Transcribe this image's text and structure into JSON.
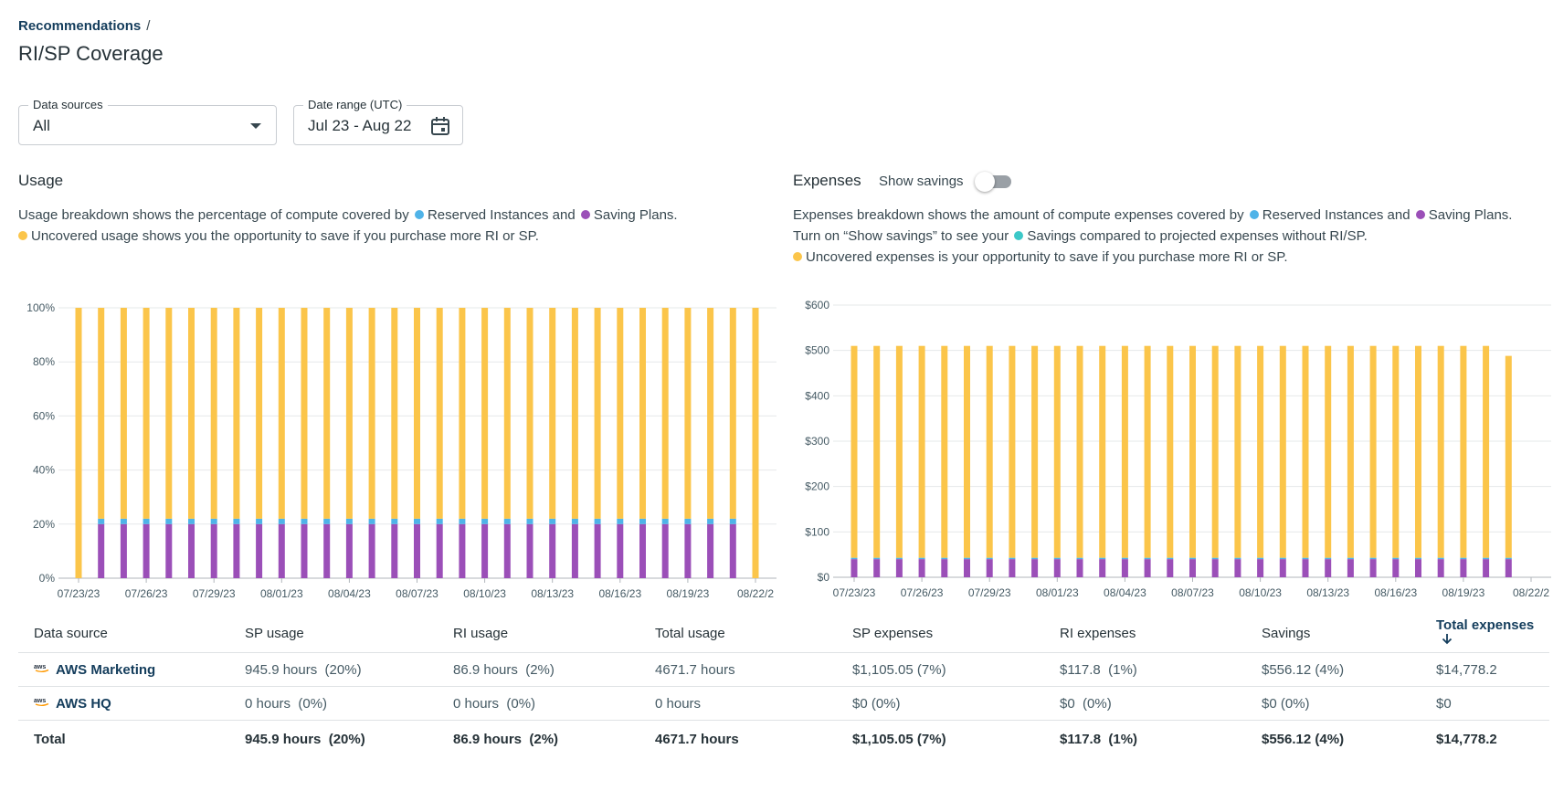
{
  "breadcrumb": {
    "parent": "Recommendations",
    "separator": "/"
  },
  "page_title": "RI/SP Coverage",
  "filters": {
    "data_sources": {
      "label": "Data sources",
      "value": "All"
    },
    "date_range": {
      "label": "Date range (UTC)",
      "value": "Jul 23 - Aug 22"
    }
  },
  "usage": {
    "title": "Usage",
    "desc_line1_pre": "Usage breakdown shows the percentage of compute covered by",
    "desc_ri": "Reserved Instances and",
    "desc_sp": "Saving Plans.",
    "desc_line2": "Uncovered usage shows you the opportunity to save if you purchase more RI or SP."
  },
  "expenses": {
    "title": "Expenses",
    "toggle_label": "Show savings",
    "desc_line1_pre": "Expenses breakdown shows the amount of compute expenses covered by",
    "desc_ri": "Reserved Instances and",
    "desc_sp": "Saving Plans.",
    "desc_line2_pre": "Turn on “Show savings” to see your",
    "desc_line2_post": "Savings compared to projected expenses without RI/SP.",
    "desc_line3": "Uncovered expenses is your opportunity to save if you purchase more RI or SP."
  },
  "colors": {
    "ri": "#4fb3e8",
    "sp": "#9b4fb8",
    "uncovered": "#fbc54a",
    "savings": "#3cc8c8"
  },
  "chart_data": [
    {
      "type": "bar",
      "title": "Usage",
      "stacked": true,
      "y_ticks": [
        "0%",
        "20%",
        "40%",
        "60%",
        "80%",
        "100%"
      ],
      "ylim": [
        0,
        100
      ],
      "x_ticks": [
        "07/23/23",
        "07/26/23",
        "07/29/23",
        "08/01/23",
        "08/04/23",
        "08/07/23",
        "08/10/23",
        "08/13/23",
        "08/16/23",
        "08/19/23",
        "08/22/2"
      ],
      "series": [
        {
          "name": "Saving Plans",
          "color": "#9b4fb8",
          "values": [
            0,
            20,
            20,
            20,
            20,
            20,
            20,
            20,
            20,
            20,
            20,
            20,
            20,
            20,
            20,
            20,
            20,
            20,
            20,
            20,
            20,
            20,
            20,
            20,
            20,
            20,
            20,
            20,
            20,
            20,
            0
          ]
        },
        {
          "name": "Reserved Instances",
          "color": "#4fb3e8",
          "values": [
            0,
            2,
            2,
            2,
            2,
            2,
            2,
            2,
            2,
            2,
            2,
            2,
            2,
            2,
            2,
            2,
            2,
            2,
            2,
            2,
            2,
            2,
            2,
            2,
            2,
            2,
            2,
            2,
            2,
            2,
            0
          ]
        },
        {
          "name": "Uncovered",
          "color": "#fbc54a",
          "values": [
            100,
            78,
            78,
            78,
            78,
            78,
            78,
            78,
            78,
            78,
            78,
            78,
            78,
            78,
            78,
            78,
            78,
            78,
            78,
            78,
            78,
            78,
            78,
            78,
            78,
            78,
            78,
            78,
            78,
            78,
            100
          ]
        }
      ]
    },
    {
      "type": "bar",
      "title": "Expenses",
      "stacked": true,
      "y_ticks": [
        "$0",
        "$100",
        "$200",
        "$300",
        "$400",
        "$500",
        "$600"
      ],
      "ylim": [
        0,
        600
      ],
      "x_ticks": [
        "07/23/23",
        "07/26/23",
        "07/29/23",
        "08/01/23",
        "08/04/23",
        "08/07/23",
        "08/10/23",
        "08/13/23",
        "08/16/23",
        "08/19/23",
        "08/22/2"
      ],
      "series": [
        {
          "name": "Saving Plans",
          "color": "#9b4fb8",
          "values": [
            40,
            40,
            40,
            40,
            40,
            40,
            40,
            40,
            40,
            40,
            40,
            40,
            40,
            40,
            40,
            40,
            40,
            40,
            40,
            40,
            40,
            40,
            40,
            40,
            40,
            40,
            40,
            40,
            40,
            40
          ]
        },
        {
          "name": "Reserved Instances",
          "color": "#4fb3e8",
          "values": [
            3,
            3,
            3,
            3,
            3,
            3,
            3,
            3,
            3,
            3,
            3,
            3,
            3,
            3,
            3,
            3,
            3,
            3,
            3,
            3,
            3,
            3,
            3,
            3,
            3,
            3,
            3,
            3,
            3,
            3
          ]
        },
        {
          "name": "Uncovered",
          "color": "#fbc54a",
          "values": [
            467,
            467,
            467,
            467,
            467,
            467,
            467,
            467,
            467,
            467,
            467,
            467,
            467,
            467,
            467,
            467,
            467,
            467,
            467,
            467,
            467,
            467,
            467,
            467,
            467,
            467,
            467,
            467,
            467,
            445
          ]
        }
      ]
    }
  ],
  "table": {
    "headers": [
      "Data source",
      "SP usage",
      "RI usage",
      "Total usage",
      "SP expenses",
      "RI expenses",
      "Savings",
      "Total expenses"
    ],
    "sort_icon": "arrow-down-icon",
    "rows": [
      {
        "source": "AWS Marketing",
        "logo": "aws",
        "sp_usage": "945.9 hours  (20%)",
        "ri_usage": "86.9 hours  (2%)",
        "total_usage": "4671.7 hours",
        "sp_expenses": "$1,105.05 (7%)",
        "ri_expenses": "$117.8  (1%)",
        "savings": "$556.12 (4%)",
        "total_expenses": "$14,778.2"
      },
      {
        "source": "AWS HQ",
        "logo": "aws",
        "sp_usage": "0 hours  (0%)",
        "ri_usage": "0 hours  (0%)",
        "total_usage": "0 hours",
        "sp_expenses": "$0 (0%)",
        "ri_expenses": "$0  (0%)",
        "savings": "$0 (0%)",
        "total_expenses": "$0"
      }
    ],
    "total": {
      "label": "Total",
      "sp_usage": "945.9 hours  (20%)",
      "ri_usage": "86.9 hours  (2%)",
      "total_usage": "4671.7 hours",
      "sp_expenses": "$1,105.05 (7%)",
      "ri_expenses": "$117.8  (1%)",
      "savings": "$556.12 (4%)",
      "total_expenses": "$14,778.2"
    }
  }
}
